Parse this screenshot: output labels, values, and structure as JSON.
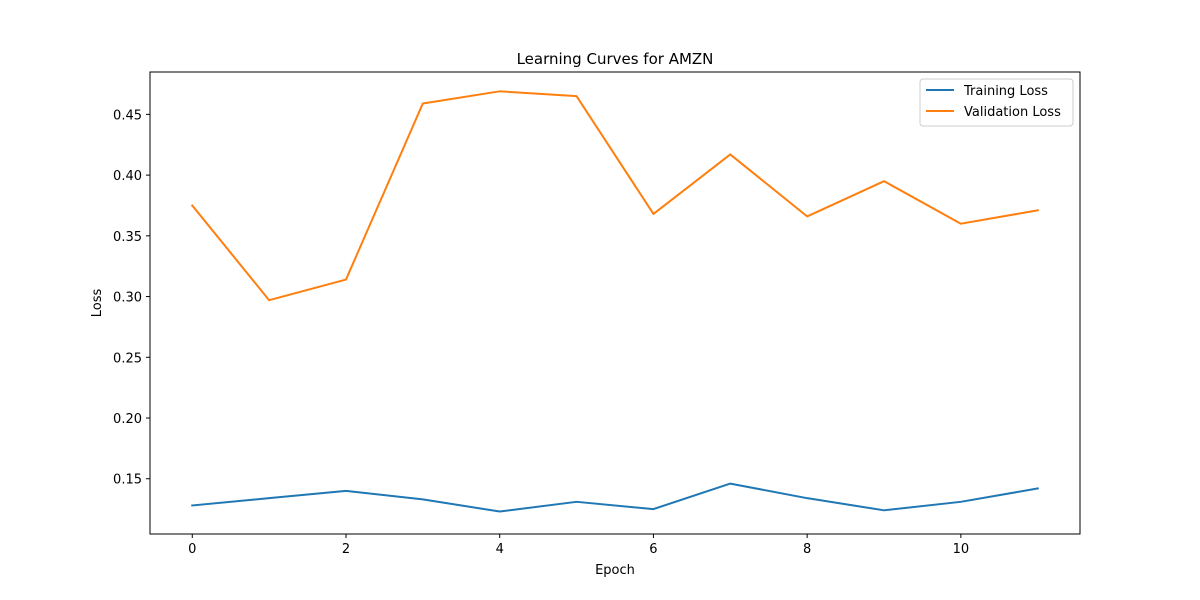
{
  "chart_data": {
    "type": "line",
    "title": "Learning Curves for AMZN",
    "xlabel": "Epoch",
    "ylabel": "Loss",
    "x": [
      0,
      1,
      2,
      3,
      4,
      5,
      6,
      7,
      8,
      9,
      10,
      11
    ],
    "xticks": [
      0,
      2,
      4,
      6,
      8,
      10
    ],
    "yticks": [
      0.15,
      0.2,
      0.25,
      0.3,
      0.35,
      0.4,
      0.45
    ],
    "xlim": [
      -0.55,
      11.55
    ],
    "ylim": [
      0.1045,
      0.4849
    ],
    "grid": false,
    "legend_position": "top-right",
    "series": [
      {
        "name": "Training Loss",
        "color": "#1f77b4",
        "values": [
          0.128,
          0.134,
          0.14,
          0.133,
          0.123,
          0.131,
          0.125,
          0.146,
          0.134,
          0.124,
          0.131,
          0.142
        ]
      },
      {
        "name": "Validation Loss",
        "color": "#ff7f0e",
        "values": [
          0.375,
          0.297,
          0.314,
          0.459,
          0.469,
          0.465,
          0.368,
          0.417,
          0.366,
          0.395,
          0.36,
          0.371
        ]
      }
    ]
  }
}
